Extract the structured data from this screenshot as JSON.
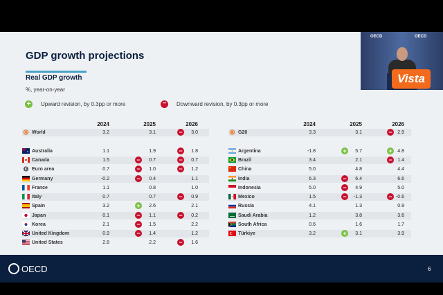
{
  "slide": {
    "title": "GDP growth projections",
    "subtitle": "Real GDP growth",
    "unit": "%, year-on-year",
    "legend": {
      "up_label": "Upward revision, by 0.3pp or more",
      "down_label": "Downward revision, by 0.3pp or more",
      "up_symbol": "+",
      "down_symbol": "−"
    },
    "years": [
      "2024",
      "2025",
      "2026"
    ],
    "left_rows": [
      {
        "country": "World",
        "v2024": "3.2",
        "v2025": "3.1",
        "v2026": "3.0",
        "r2025": "",
        "r2026": "down",
        "flag": "globe"
      },
      {
        "country": "Australia",
        "v2024": "1.1",
        "v2025": "1.9",
        "v2026": "1.8",
        "r2025": "",
        "r2026": "down",
        "flag": "au"
      },
      {
        "country": "Canada",
        "v2024": "1.5",
        "v2025": "0.7",
        "v2026": "0.7",
        "r2025": "down",
        "r2026": "down",
        "flag": "ca"
      },
      {
        "country": "Euro area",
        "v2024": "0.7",
        "v2025": "1.0",
        "v2026": "1.2",
        "r2025": "down",
        "r2026": "down",
        "flag": "eu"
      },
      {
        "country": "Germany",
        "v2024": "-0.2",
        "v2025": "0.4",
        "v2026": "1.1",
        "r2025": "down",
        "r2026": "",
        "flag": "de"
      },
      {
        "country": "France",
        "v2024": "1.1",
        "v2025": "0.8",
        "v2026": "1.0",
        "r2025": "",
        "r2026": "",
        "flag": "fr"
      },
      {
        "country": "Italy",
        "v2024": "0.7",
        "v2025": "0.7",
        "v2026": "0.9",
        "r2025": "",
        "r2026": "down",
        "flag": "it"
      },
      {
        "country": "Spain",
        "v2024": "3.2",
        "v2025": "2.6",
        "v2026": "2.1",
        "r2025": "up",
        "r2026": "",
        "flag": "es"
      },
      {
        "country": "Japan",
        "v2024": "0.1",
        "v2025": "1.1",
        "v2026": "0.2",
        "r2025": "down",
        "r2026": "down",
        "flag": "jp"
      },
      {
        "country": "Korea",
        "v2024": "2.1",
        "v2025": "1.5",
        "v2026": "2.2",
        "r2025": "down",
        "r2026": "",
        "flag": "kr"
      },
      {
        "country": "United Kingdom",
        "v2024": "0.9",
        "v2025": "1.4",
        "v2026": "1.2",
        "r2025": "down",
        "r2026": "",
        "flag": "uk"
      },
      {
        "country": "United States",
        "v2024": "2.8",
        "v2025": "2.2",
        "v2026": "1.6",
        "r2025": "",
        "r2026": "down",
        "flag": "us"
      }
    ],
    "right_rows": [
      {
        "country": "G20",
        "v2024": "3.3",
        "v2025": "3.1",
        "v2026": "2.9",
        "r2025": "",
        "r2026": "down",
        "flag": "globe"
      },
      {
        "country": "Argentina",
        "v2024": "-1.8",
        "v2025": "5.7",
        "v2026": "4.8",
        "r2025": "up",
        "r2026": "up",
        "flag": "ar"
      },
      {
        "country": "Brazil",
        "v2024": "3.4",
        "v2025": "2.1",
        "v2026": "1.4",
        "r2025": "",
        "r2026": "down",
        "flag": "br"
      },
      {
        "country": "China",
        "v2024": "5.0",
        "v2025": "4.8",
        "v2026": "4.4",
        "r2025": "",
        "r2026": "",
        "flag": "cn"
      },
      {
        "country": "India",
        "v2024": "6.3",
        "v2025": "6.4",
        "v2026": "6.6",
        "r2025": "down",
        "r2026": "",
        "flag": "in"
      },
      {
        "country": "Indonesia",
        "v2024": "5.0",
        "v2025": "4.9",
        "v2026": "5.0",
        "r2025": "down",
        "r2026": "",
        "flag": "id"
      },
      {
        "country": "Mexico",
        "v2024": "1.5",
        "v2025": "-1.3",
        "v2026": "-0.6",
        "r2025": "down",
        "r2026": "down",
        "flag": "mx"
      },
      {
        "country": "Russia",
        "v2024": "4.1",
        "v2025": "1.3",
        "v2026": "0.9",
        "r2025": "",
        "r2026": "",
        "flag": "ru"
      },
      {
        "country": "Saudi Arabia",
        "v2024": "1.2",
        "v2025": "3.8",
        "v2026": "3.6",
        "r2025": "",
        "r2026": "",
        "flag": "sa"
      },
      {
        "country": "South Africa",
        "v2024": "0.6",
        "v2025": "1.6",
        "v2026": "1.7",
        "r2025": "",
        "r2026": "",
        "flag": "za"
      },
      {
        "country": "Türkiye",
        "v2024": "3.2",
        "v2025": "3.1",
        "v2026": "3.9",
        "r2025": "up",
        "r2026": "",
        "flag": "tr"
      }
    ]
  },
  "footer": {
    "org": "OECD",
    "page": "6"
  },
  "overlay": {
    "watermark": "Vista",
    "video_org": "OECD"
  },
  "colors": {
    "navy": "#0b1f3f",
    "up": "#7ac143",
    "down": "#c8102e",
    "accent": "#4aa3c8",
    "watermark": "#f26a1b"
  }
}
